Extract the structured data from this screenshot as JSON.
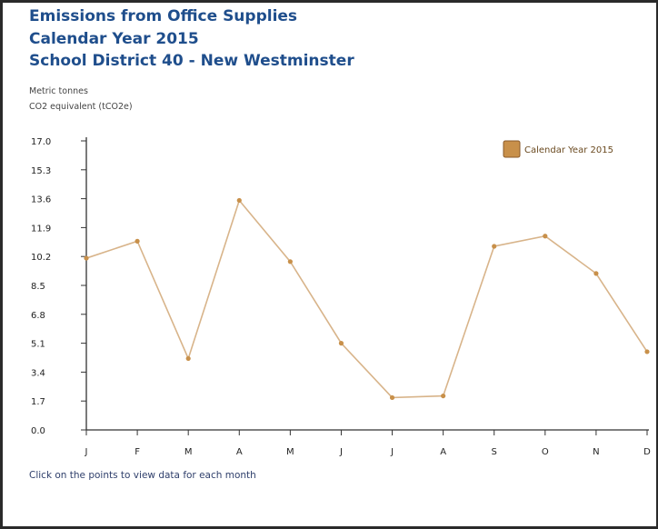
{
  "titles": {
    "line1": "Emissions from Office Supplies",
    "line2": "Calendar Year 2015",
    "line3": "School District 40 - New Westminster"
  },
  "units": {
    "line1": "Metric tonnes",
    "line2": "CO2 equivalent (tCO2e)"
  },
  "footnote": "Click on the points to view data for each month",
  "colors": {
    "line": "#d8b48a",
    "marker": "#c8904a",
    "title": "#1f4e8c"
  },
  "chart_data": {
    "type": "line",
    "categories": [
      "J",
      "F",
      "M",
      "A",
      "M",
      "J",
      "J",
      "A",
      "S",
      "O",
      "N",
      "D"
    ],
    "y_ticks": [
      "0.0",
      "1.7",
      "3.4",
      "5.1",
      "6.8",
      "8.5",
      "10.2",
      "11.9",
      "13.6",
      "15.3",
      "17.0"
    ],
    "ylim": [
      0,
      17.0
    ],
    "grid": false,
    "legend_position": "top-right",
    "series": [
      {
        "name": "Calendar Year 2015",
        "values": [
          10.1,
          11.1,
          4.2,
          13.5,
          9.9,
          5.1,
          1.9,
          2.0,
          10.8,
          11.4,
          9.2,
          4.6
        ]
      }
    ]
  }
}
